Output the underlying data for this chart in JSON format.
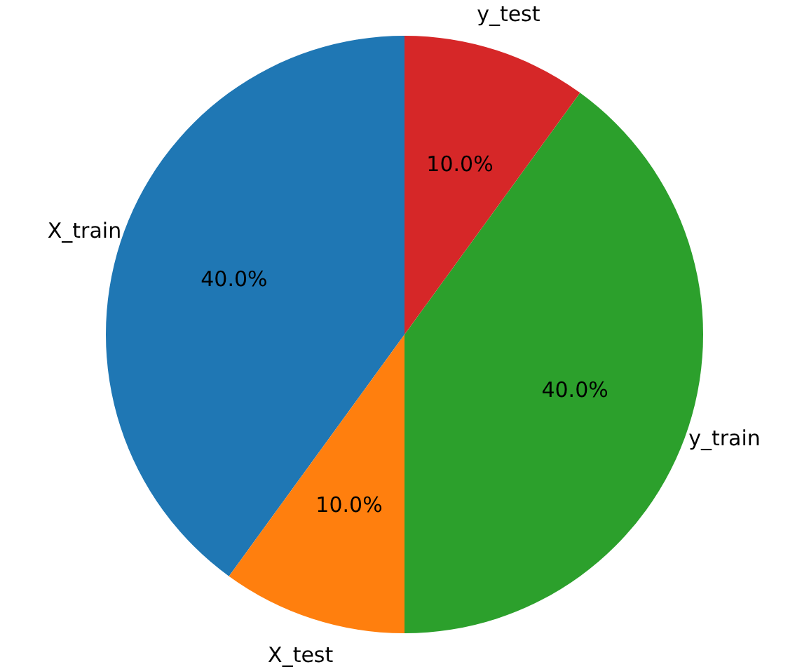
{
  "chart_data": {
    "type": "pie",
    "categories": [
      "X_train",
      "X_test",
      "y_train",
      "y_test"
    ],
    "values": [
      40,
      10,
      40,
      10
    ],
    "colors": [
      "#1f77b4",
      "#ff7f0e",
      "#2ca02c",
      "#d62728"
    ],
    "value_labels": [
      "40.0%",
      "10.0%",
      "40.0%",
      "10.0%"
    ]
  }
}
